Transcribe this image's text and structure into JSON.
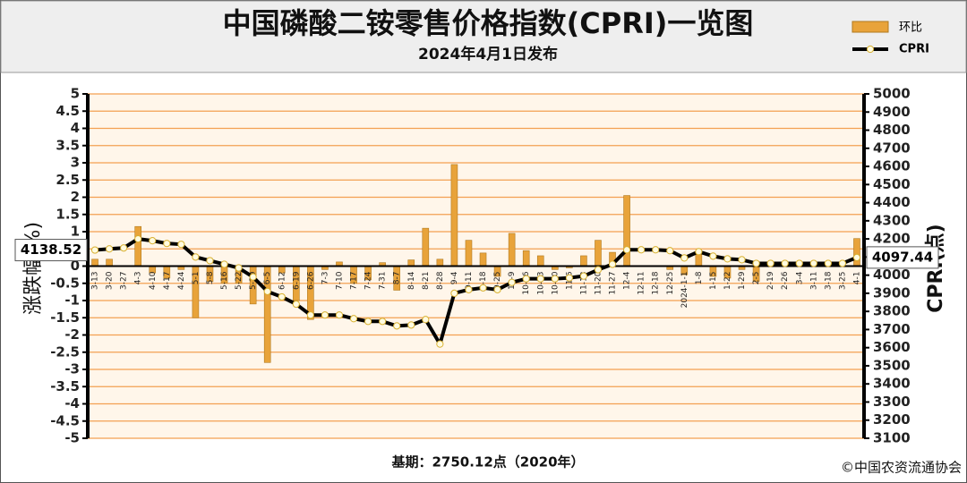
{
  "chart_data": {
    "type": "bar-line",
    "title": "中国磷酸二铵零售价格指数(CPRI)一览图",
    "subtitle": "2024年4月1日发布",
    "y_label": "涨跌幅(%)",
    "y2_label": "CPRI(点)",
    "footer_left": "基期：2750.12点（2020年）",
    "footer_right": "©中国农资流通协会",
    "categories": [
      "3-13",
      "3-20",
      "3-27",
      "4-3",
      "4-10",
      "4-17",
      "4-24",
      "5-1",
      "5-8",
      "5-16",
      "5-22",
      "5-29",
      "6-5",
      "6-12",
      "6-19",
      "6-26",
      "7-3",
      "7-10",
      "7-17",
      "7-24",
      "7-31",
      "8-7",
      "8-14",
      "8-21",
      "8-28",
      "9-4",
      "9-11",
      "9-18",
      "9-25",
      "10-9",
      "10-16",
      "10-23",
      "10-30",
      "11-6",
      "11-13",
      "11-20",
      "11-27",
      "12-4",
      "12-11",
      "12-18",
      "12-25",
      "2024-1-1",
      "1-8",
      "1-15",
      "1-22",
      "1-29",
      "2-5",
      "2-19",
      "2-26",
      "3-4",
      "3-11",
      "3-18",
      "3-25",
      "4-1"
    ],
    "series": [
      {
        "name": "环比",
        "color": "#e8a33a",
        "values": [
          0.2,
          0.2,
          0,
          1.15,
          -0.2,
          -0.35,
          -0.1,
          -1.5,
          -0.45,
          -0.5,
          -0.5,
          -1.1,
          -2.8,
          -0.2,
          -1.0,
          -1.55,
          -0.1,
          0.12,
          -0.5,
          -0.4,
          0.1,
          -0.7,
          0.18,
          1.1,
          0.2,
          2.95,
          0.75,
          0.38,
          -0.3,
          0.95,
          0.45,
          0.3,
          -0.1,
          -0.05,
          0.3,
          0.75,
          0.4,
          2.05,
          0,
          0,
          -0.1,
          -0.25,
          0.4,
          -0.3,
          -0.35,
          -0.1,
          -0.45,
          0,
          0,
          0,
          0,
          0,
          0,
          0.8
        ]
      },
      {
        "name": "CPRI",
        "color": "#000000",
        "axis": "y2",
        "values": [
          4138.52,
          4145,
          4150,
          4200,
          4190,
          4175,
          4170,
          4100,
          4080,
          4060,
          4040,
          3990,
          3910,
          3880,
          3840,
          3780,
          3780,
          3780,
          3760,
          3745,
          3745,
          3720,
          3725,
          3755,
          3620,
          3900,
          3920,
          3930,
          3920,
          3960,
          3980,
          3980,
          3980,
          3985,
          3995,
          4030,
          4060,
          4140,
          4140,
          4140,
          4135,
          4095,
          4130,
          4105,
          4090,
          4085,
          4065,
          4065,
          4065,
          4065,
          4065,
          4065,
          4065,
          4097.44
        ]
      }
    ],
    "ylim": [
      -5,
      5
    ],
    "yticks": [
      -5,
      -4.5,
      -4,
      -3.5,
      -3,
      -2.5,
      -2,
      -1.5,
      -1,
      -0.5,
      0,
      0.5,
      1,
      1.5,
      2,
      2.5,
      3,
      3.5,
      4,
      4.5,
      5
    ],
    "y2lim": [
      3100,
      5000
    ],
    "y2ticks": [
      3100,
      3200,
      3300,
      3400,
      3500,
      3600,
      3700,
      3800,
      3900,
      4000,
      4100,
      4200,
      4300,
      4400,
      4500,
      4600,
      4700,
      4800,
      4900,
      5000
    ],
    "grid": true
  }
}
